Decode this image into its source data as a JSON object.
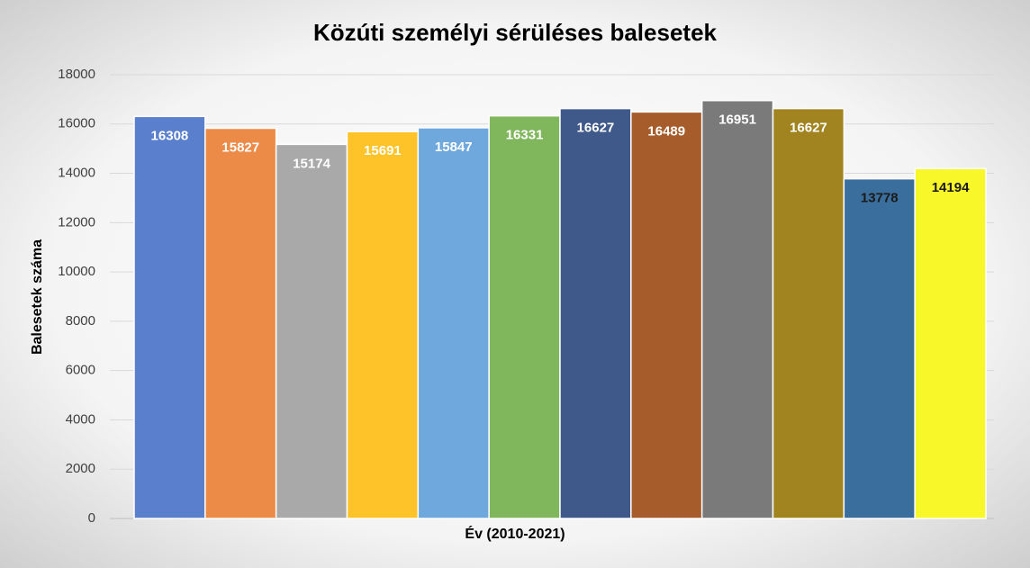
{
  "chart_data": {
    "type": "bar",
    "title": "Közúti személyi sérüléses balesetek",
    "x_label": "Év (2010-2021)",
    "y_label": "Balesetek száma",
    "categories": [
      null,
      null,
      null,
      null,
      null,
      null,
      null,
      null,
      null,
      null,
      null,
      null
    ],
    "values": [
      16308,
      15827,
      15174,
      15691,
      15847,
      16331,
      16627,
      16489,
      16951,
      16627,
      13778,
      14194
    ],
    "colors": [
      "#5a7fcc",
      "#ec8a48",
      "#a9a9a9",
      "#fdc328",
      "#6fa8dc",
      "#80b75d",
      "#3f5a8a",
      "#a65c2b",
      "#7a7a7a",
      "#a1831f",
      "#3a6e9c",
      "#f7f72a"
    ],
    "label_colors": [
      "#ffffff",
      "#ffffff",
      "#ffffff",
      "#ffffff",
      "#ffffff",
      "#ffffff",
      "#ffffff",
      "#ffffff",
      "#ffffff",
      "#ffffff",
      "#1a1a1a",
      "#1a1a1a"
    ],
    "ylim": [
      0,
      18000
    ],
    "yticks": [
      0,
      2000,
      4000,
      6000,
      8000,
      10000,
      12000,
      14000,
      16000,
      18000
    ],
    "grid": true
  }
}
